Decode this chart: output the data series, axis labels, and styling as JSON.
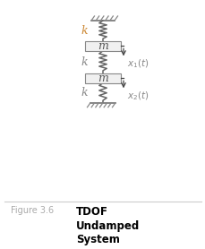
{
  "fig_label": "Figure 3.6",
  "fig_title_line1": "TDOF",
  "fig_title_line2": "Undamped",
  "fig_title_line3": "System",
  "fig_label_color": "#aaaaaa",
  "fig_title_color": "#000000",
  "bg_color": "#ffffff",
  "spring_color": "#666666",
  "mass_fc": "#f0f0f0",
  "mass_ec": "#888888",
  "arrow_color": "#444444",
  "text_color": "#888888",
  "k_color": "#cc8833",
  "hatch_color": "#888888",
  "line_color": "#cccccc"
}
